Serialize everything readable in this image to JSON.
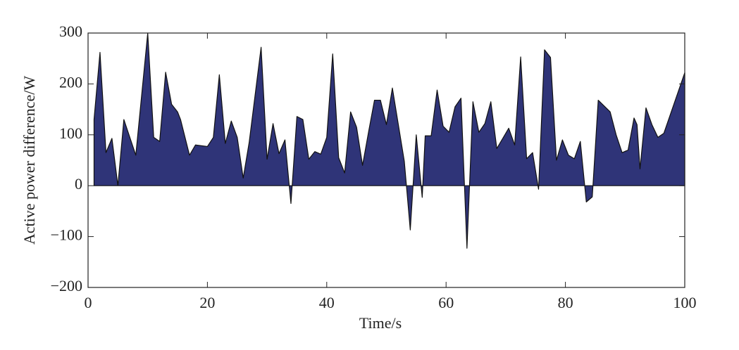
{
  "chart_data": {
    "type": "area",
    "xlabel": "Time/s",
    "ylabel": "Active power difference/W",
    "x": [
      1,
      2,
      3,
      4,
      5,
      6,
      7,
      8,
      10,
      11,
      12,
      13,
      14,
      15,
      15.5,
      17,
      18,
      20,
      21,
      22,
      23,
      24,
      25,
      26,
      27,
      29,
      30,
      31,
      32,
      33,
      34,
      35,
      36,
      37,
      38,
      39,
      40,
      41,
      42,
      43,
      44,
      45,
      46,
      47,
      48,
      49,
      50,
      51,
      52,
      53,
      54,
      55,
      56,
      56.5,
      57.5,
      58.5,
      59.5,
      60.5,
      61.5,
      62.5,
      63.5,
      64.5,
      65.5,
      66.5,
      67.5,
      68.5,
      69.5,
      70.5,
      71.5,
      72.5,
      73.5,
      74.5,
      75.5,
      76.5,
      77.5,
      78.5,
      79.5,
      80.5,
      81.5,
      82.5,
      83.5,
      84.5,
      85.5,
      87.5,
      88.5,
      89.5,
      90.5,
      91.5,
      92,
      92.5,
      93.5,
      94.5,
      95.5,
      96.5,
      100
    ],
    "series": [
      {
        "color": "#2f3478",
        "values": [
          130,
          262,
          65,
          93,
          0,
          130,
          95,
          60,
          300,
          95,
          87,
          223,
          160,
          145,
          130,
          60,
          80,
          77,
          95,
          218,
          83,
          127,
          95,
          15,
          85,
          272,
          52,
          122,
          63,
          90,
          -35,
          136,
          130,
          52,
          67,
          62,
          95,
          259,
          55,
          25,
          145,
          115,
          40,
          105,
          168,
          168,
          120,
          192,
          120,
          48,
          -87,
          100,
          -23,
          98,
          98,
          188,
          117,
          105,
          155,
          172,
          -123,
          165,
          105,
          122,
          165,
          73,
          93,
          113,
          80,
          253,
          53,
          65,
          -7,
          267,
          252,
          50,
          90,
          60,
          53,
          87,
          -32,
          -22,
          168,
          145,
          100,
          65,
          70,
          133,
          120,
          33,
          153,
          120,
          95,
          103,
          222
        ]
      }
    ],
    "xlim": [
      0,
      100
    ],
    "ylim": [
      -200,
      300
    ],
    "xticks": [
      0,
      20,
      40,
      60,
      80,
      100
    ],
    "yticks": [
      {
        "value": -200,
        "label": "−200"
      },
      {
        "value": -100,
        "label": "−100"
      },
      0,
      100,
      200,
      300
    ]
  }
}
